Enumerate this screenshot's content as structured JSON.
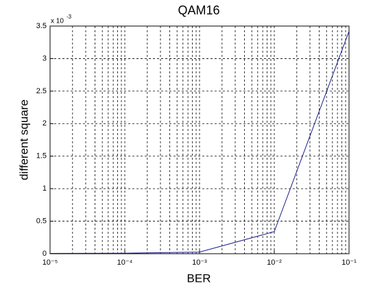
{
  "chart_data": {
    "type": "line",
    "title": "QAM16",
    "xlabel": "BER",
    "ylabel": "different square",
    "y_multiplier": "x 10",
    "y_multiplier_exponent": "-3",
    "x": [
      1e-05,
      0.0001,
      0.001,
      0.01,
      0.1
    ],
    "series": [
      {
        "name": "QAM16",
        "color": "#1a1a8c",
        "values": [
          0.005,
          0.008,
          0.025,
          0.34,
          3.42
        ]
      }
    ],
    "xscale": "log",
    "xlim": [
      1e-05,
      0.1
    ],
    "xticks": [
      {
        "value": 1e-05,
        "label": "10⁻⁵"
      },
      {
        "value": 0.0001,
        "label": "10⁻⁴"
      },
      {
        "value": 0.001,
        "label": "10⁻³"
      },
      {
        "value": 0.01,
        "label": "10⁻²"
      },
      {
        "value": 0.1,
        "label": "10⁻¹"
      }
    ],
    "xminorticks": [
      2e-05,
      3e-05,
      4e-05,
      5e-05,
      6e-05,
      7e-05,
      8e-05,
      9e-05,
      0.0002,
      0.0003,
      0.0004,
      0.0005,
      0.0006,
      0.0007,
      0.0008,
      0.0009,
      0.002,
      0.003,
      0.004,
      0.005,
      0.006,
      0.007,
      0.008,
      0.009,
      0.02,
      0.03,
      0.04,
      0.05,
      0.06,
      0.07,
      0.08,
      0.09
    ],
    "ylim": [
      0,
      3.5
    ],
    "yticks": [
      0,
      0.5,
      1,
      1.5,
      2,
      2.5,
      3,
      3.5
    ],
    "grid": true
  }
}
